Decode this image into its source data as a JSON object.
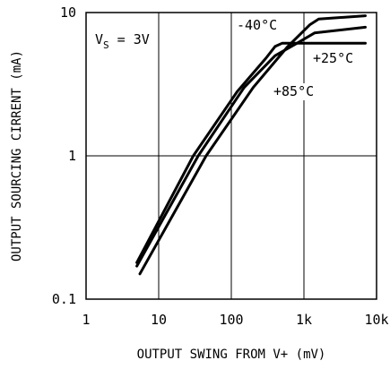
{
  "chart_data": {
    "type": "line",
    "title": "",
    "xlabel": "OUTPUT SWING FROM V+ (mV)",
    "ylabel": "OUTPUT SOURCING CIRRENT (mA)",
    "xscale": "log",
    "yscale": "log",
    "xlim": [
      1,
      10000
    ],
    "ylim": [
      0.1,
      10
    ],
    "grid": true,
    "xticks": [
      {
        "value": 1,
        "label": "1"
      },
      {
        "value": 10,
        "label": "10"
      },
      {
        "value": 100,
        "label": "100"
      },
      {
        "value": 1000,
        "label": "1k"
      },
      {
        "value": 10000,
        "label": "10k"
      }
    ],
    "yticks": [
      {
        "value": 0.1,
        "label": "0.1"
      },
      {
        "value": 1,
        "label": "1"
      },
      {
        "value": 10,
        "label": "10"
      }
    ],
    "condition": {
      "v": "V",
      "sub": "S",
      "rest": " = 3V"
    },
    "series": [
      {
        "name": "-40°C",
        "points": [
          [
            5,
            0.18
          ],
          [
            30,
            1.0
          ],
          [
            120,
            2.8
          ],
          [
            300,
            4.8
          ],
          [
            400,
            5.8
          ],
          [
            500,
            6.1
          ],
          [
            1000,
            6.1
          ],
          [
            7000,
            6.1
          ]
        ]
      },
      {
        "name": "+25°C",
        "points": [
          [
            5,
            0.17
          ],
          [
            35,
            1.0
          ],
          [
            150,
            3.0
          ],
          [
            400,
            5.0
          ],
          [
            800,
            6.1
          ],
          [
            1400,
            7.2
          ],
          [
            7000,
            7.9
          ]
        ]
      },
      {
        "name": "+85°C",
        "points": [
          [
            5.5,
            0.15
          ],
          [
            45,
            1.0
          ],
          [
            200,
            3.0
          ],
          [
            600,
            5.8
          ],
          [
            1200,
            8.2
          ],
          [
            1600,
            9.0
          ],
          [
            7000,
            9.5
          ]
        ]
      }
    ],
    "annotations": [
      {
        "series": "-40°C",
        "text": "-40°C"
      },
      {
        "series": "+25°C",
        "text": "+25°C"
      },
      {
        "series": "+85°C",
        "text": "+85°C"
      }
    ]
  }
}
